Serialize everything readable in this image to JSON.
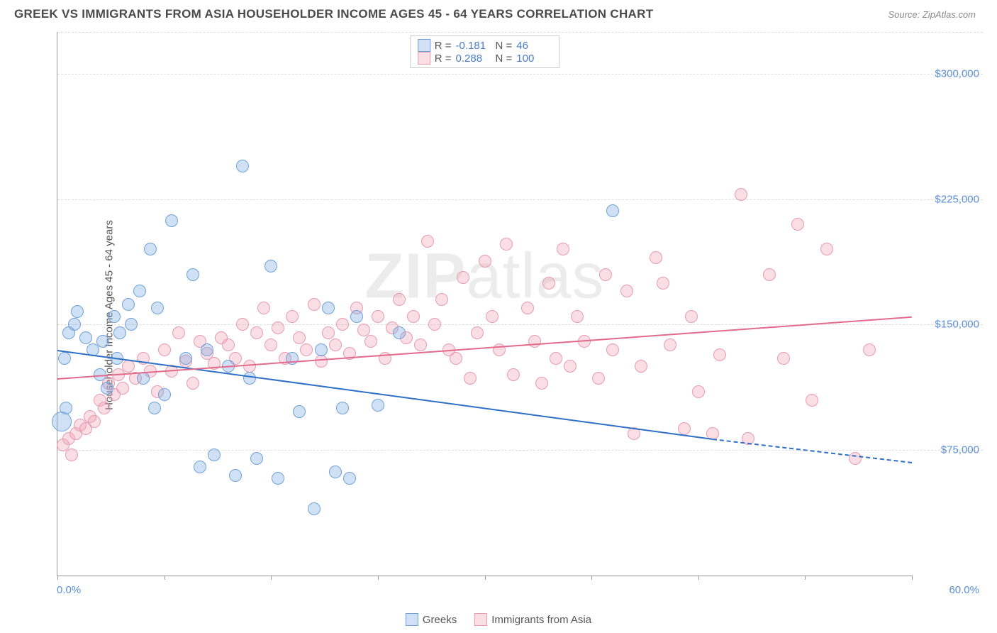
{
  "title": "GREEK VS IMMIGRANTS FROM ASIA HOUSEHOLDER INCOME AGES 45 - 64 YEARS CORRELATION CHART",
  "source": "Source: ZipAtlas.com",
  "watermark_bold": "ZIP",
  "watermark_thin": "atlas",
  "ylabel": "Householder Income Ages 45 - 64 years",
  "chart": {
    "type": "scatter",
    "xlim": [
      0,
      60
    ],
    "ylim": [
      0,
      325000
    ],
    "x_min_label": "0.0%",
    "x_max_label": "60.0%",
    "y_ticks": [
      75000,
      150000,
      225000,
      300000
    ],
    "y_tick_labels": [
      "$75,000",
      "$150,000",
      "$225,000",
      "$300,000"
    ],
    "x_tick_positions": [
      0,
      7.5,
      15,
      22.5,
      30,
      37.5,
      45,
      52.5,
      60
    ],
    "grid_color": "#dddddd",
    "background_color": "#ffffff",
    "axis_color": "#999999",
    "label_color": "#5b8fd6",
    "marker_radius": 9,
    "marker_big_radius": 14,
    "series": [
      {
        "name": "Greeks",
        "fill": "rgba(120,170,225,0.35)",
        "stroke": "#6fa1d8",
        "trend_color": "#2e6fc7",
        "R": "-0.181",
        "N": "46",
        "trend": {
          "x1": 0,
          "y1": 135000,
          "x2": 46,
          "y2": 82000,
          "dash_to_x": 60,
          "dash_to_y": 68000
        },
        "points": [
          [
            0.3,
            92000,
            14
          ],
          [
            0.5,
            130000
          ],
          [
            0.8,
            145000
          ],
          [
            1.2,
            150000
          ],
          [
            1.4,
            158000
          ],
          [
            0.6,
            100000
          ],
          [
            2.0,
            142000
          ],
          [
            2.5,
            135000
          ],
          [
            3.0,
            120000
          ],
          [
            3.2,
            140000
          ],
          [
            3.5,
            112000
          ],
          [
            4.0,
            155000
          ],
          [
            4.2,
            130000
          ],
          [
            4.4,
            145000
          ],
          [
            5.0,
            162000
          ],
          [
            5.2,
            150000
          ],
          [
            5.8,
            170000
          ],
          [
            6.0,
            118000
          ],
          [
            6.5,
            195000
          ],
          [
            6.8,
            100000
          ],
          [
            7.0,
            160000
          ],
          [
            7.5,
            108000
          ],
          [
            8.0,
            212000
          ],
          [
            9.0,
            130000
          ],
          [
            9.5,
            180000
          ],
          [
            10.0,
            65000
          ],
          [
            10.5,
            135000
          ],
          [
            11.0,
            72000
          ],
          [
            12.0,
            125000
          ],
          [
            12.5,
            60000
          ],
          [
            13.0,
            245000
          ],
          [
            13.5,
            118000
          ],
          [
            14.0,
            70000
          ],
          [
            15.0,
            185000
          ],
          [
            15.5,
            58000
          ],
          [
            16.5,
            130000
          ],
          [
            17.0,
            98000
          ],
          [
            18.0,
            40000
          ],
          [
            18.5,
            135000
          ],
          [
            19.0,
            160000
          ],
          [
            19.5,
            62000
          ],
          [
            20.0,
            100000
          ],
          [
            20.5,
            58000
          ],
          [
            21.0,
            155000
          ],
          [
            22.5,
            102000
          ],
          [
            24.0,
            145000
          ],
          [
            39.0,
            218000
          ]
        ]
      },
      {
        "name": "Immigrants from Asia",
        "fill": "rgba(240,160,180,0.35)",
        "stroke": "#e89bb0",
        "trend_color": "#e26a8c",
        "R": "0.288",
        "N": "100",
        "trend": {
          "x1": 0,
          "y1": 118000,
          "x2": 60,
          "y2": 155000
        },
        "points": [
          [
            0.4,
            78000
          ],
          [
            0.8,
            82000
          ],
          [
            1.0,
            72000
          ],
          [
            1.3,
            85000
          ],
          [
            1.6,
            90000
          ],
          [
            2.0,
            88000
          ],
          [
            2.3,
            95000
          ],
          [
            2.6,
            92000
          ],
          [
            3.0,
            105000
          ],
          [
            3.3,
            100000
          ],
          [
            3.6,
            115000
          ],
          [
            4.0,
            108000
          ],
          [
            4.3,
            120000
          ],
          [
            4.6,
            112000
          ],
          [
            5.0,
            125000
          ],
          [
            5.5,
            118000
          ],
          [
            6.0,
            130000
          ],
          [
            6.5,
            122000
          ],
          [
            7.0,
            110000
          ],
          [
            7.5,
            135000
          ],
          [
            8.0,
            122000
          ],
          [
            8.5,
            145000
          ],
          [
            9.0,
            128000
          ],
          [
            9.5,
            115000
          ],
          [
            10.0,
            140000
          ],
          [
            10.5,
            133000
          ],
          [
            11.0,
            127000
          ],
          [
            11.5,
            142000
          ],
          [
            12.0,
            138000
          ],
          [
            12.5,
            130000
          ],
          [
            13.0,
            150000
          ],
          [
            13.5,
            125000
          ],
          [
            14.0,
            145000
          ],
          [
            14.5,
            160000
          ],
          [
            15.0,
            138000
          ],
          [
            15.5,
            148000
          ],
          [
            16.0,
            130000
          ],
          [
            16.5,
            155000
          ],
          [
            17.0,
            142000
          ],
          [
            17.5,
            135000
          ],
          [
            18.0,
            162000
          ],
          [
            18.5,
            128000
          ],
          [
            19.0,
            145000
          ],
          [
            19.5,
            138000
          ],
          [
            20.0,
            150000
          ],
          [
            20.5,
            133000
          ],
          [
            21.0,
            160000
          ],
          [
            21.5,
            147000
          ],
          [
            22.0,
            140000
          ],
          [
            22.5,
            155000
          ],
          [
            23.0,
            130000
          ],
          [
            23.5,
            148000
          ],
          [
            24.0,
            165000
          ],
          [
            24.5,
            142000
          ],
          [
            25.0,
            155000
          ],
          [
            25.5,
            138000
          ],
          [
            26.0,
            200000
          ],
          [
            26.5,
            150000
          ],
          [
            27.0,
            165000
          ],
          [
            27.5,
            135000
          ],
          [
            28.0,
            130000
          ],
          [
            28.5,
            178000
          ],
          [
            29.0,
            118000
          ],
          [
            29.5,
            145000
          ],
          [
            30.0,
            188000
          ],
          [
            30.5,
            155000
          ],
          [
            31.0,
            135000
          ],
          [
            31.5,
            198000
          ],
          [
            32.0,
            120000
          ],
          [
            33.0,
            160000
          ],
          [
            33.5,
            140000
          ],
          [
            34.0,
            115000
          ],
          [
            34.5,
            175000
          ],
          [
            35.0,
            130000
          ],
          [
            35.5,
            195000
          ],
          [
            36.0,
            125000
          ],
          [
            36.5,
            155000
          ],
          [
            37.0,
            140000
          ],
          [
            38.0,
            118000
          ],
          [
            38.5,
            180000
          ],
          [
            39.0,
            135000
          ],
          [
            40.0,
            170000
          ],
          [
            40.5,
            85000
          ],
          [
            41.0,
            125000
          ],
          [
            42.0,
            190000
          ],
          [
            42.5,
            175000
          ],
          [
            43.0,
            138000
          ],
          [
            44.0,
            88000
          ],
          [
            44.5,
            155000
          ],
          [
            45.0,
            110000
          ],
          [
            46.0,
            85000
          ],
          [
            46.5,
            132000
          ],
          [
            48.0,
            228000
          ],
          [
            48.5,
            82000
          ],
          [
            50.0,
            180000
          ],
          [
            51.0,
            130000
          ],
          [
            52.0,
            210000
          ],
          [
            53.0,
            105000
          ],
          [
            54.0,
            195000
          ],
          [
            56.0,
            70000
          ],
          [
            57.0,
            135000
          ]
        ]
      }
    ]
  },
  "legend": {
    "series1_label": "Greeks",
    "series2_label": "Immigrants from Asia"
  },
  "corr_box": {
    "r_label": "R =",
    "n_label": "N ="
  }
}
